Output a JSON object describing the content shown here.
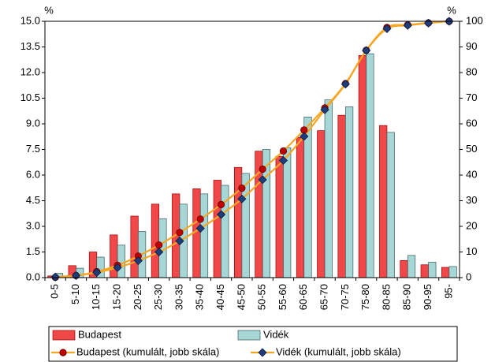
{
  "chart_data": {
    "type": "bar",
    "y_unit": "%",
    "y2_unit": "%",
    "categories": [
      "0-5",
      "5-10",
      "10-15",
      "15-20",
      "20-25",
      "25-30",
      "30-35",
      "35-40",
      "40-45",
      "45-50",
      "50-55",
      "55-60",
      "60-65",
      "65-70",
      "70-75",
      "75-80",
      "80-85",
      "85-90",
      "90-95",
      "95-"
    ],
    "ylim": [
      0,
      15
    ],
    "yticks": [
      {
        "value": 0,
        "label": "0.0"
      },
      1.5,
      {
        "value": 3,
        "label": "3.0"
      },
      4.5,
      {
        "value": 6,
        "label": "6.0"
      },
      7.5,
      {
        "value": 9,
        "label": "9.0"
      },
      10.5,
      {
        "value": 12,
        "label": "12.0"
      },
      13.5,
      {
        "value": 15,
        "label": "15.0"
      }
    ],
    "y2lim": [
      0,
      100
    ],
    "y2ticks": [
      0,
      10,
      20,
      30,
      40,
      50,
      60,
      70,
      80,
      90,
      100
    ],
    "series": [
      {
        "name": "Budapest",
        "type": "bar",
        "color": "#f04848",
        "values": [
          0.1,
          0.7,
          1.5,
          2.5,
          3.6,
          4.3,
          4.9,
          5.2,
          5.7,
          6.45,
          7.4,
          7.1,
          8.2,
          8.6,
          9.5,
          13.0,
          8.9,
          1.0,
          0.75,
          0.6
        ]
      },
      {
        "name": "Vidék",
        "type": "bar",
        "color": "#a6d6d6",
        "values": [
          0.25,
          0.55,
          1.2,
          1.9,
          2.7,
          3.45,
          4.3,
          4.9,
          5.4,
          6.1,
          7.5,
          7.6,
          9.4,
          10.4,
          10.0,
          13.1,
          8.5,
          1.3,
          0.9,
          0.65
        ]
      },
      {
        "name": "Budapest (kumulált, jobb skála)",
        "type": "line",
        "axis": "y2",
        "color": "#f5a623",
        "marker": "circle",
        "marker_color": "#c00000",
        "values": [
          0.1,
          0.8,
          2.3,
          4.8,
          8.4,
          12.7,
          17.6,
          22.8,
          28.5,
          34.9,
          42.3,
          49.4,
          57.6,
          66.2,
          75.7,
          88.7,
          97.6,
          98.6,
          99.4,
          100
        ]
      },
      {
        "name": "Vidék (kumulált, jobb skála)",
        "type": "line",
        "axis": "y2",
        "color": "#f5a623",
        "marker": "diamond",
        "marker_color": "#1f3d7a",
        "values": [
          0.25,
          0.8,
          2.0,
          3.9,
          6.6,
          10.0,
          14.3,
          19.2,
          24.6,
          30.7,
          38.2,
          45.7,
          55.1,
          65.5,
          75.5,
          88.6,
          97.1,
          98.4,
          99.3,
          100
        ]
      }
    ]
  }
}
